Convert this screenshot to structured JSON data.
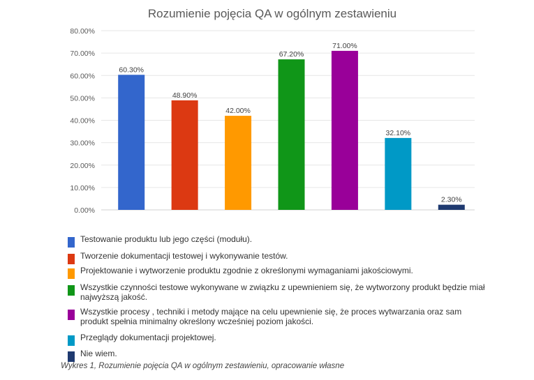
{
  "chart_data": {
    "type": "bar",
    "title": "Rozumienie pojęcia QA w ogólnym zestawieniu",
    "ylim": [
      0,
      80
    ],
    "y_ticks": [
      "0.00%",
      "10.00%",
      "20.00%",
      "30.00%",
      "40.00%",
      "50.00%",
      "60.00%",
      "70.00%",
      "80.00%"
    ],
    "grid": true,
    "legend_position": "bottom",
    "categories": [
      "Testowanie produktu lub jego części (modułu).",
      "Tworzenie dokumentacji testowej i wykonywanie testów.",
      "Projektowanie i wytworzenie produktu zgodnie z określonymi wymaganiami jakościowymi.",
      "Wszystkie czynności testowe wykonywane w związku z upewnieniem się, że wytworzony produkt będzie miał najwyższą jakość.",
      "Wszystkie procesy , techniki i metody mające na celu upewnienie się, że proces wytwarzania oraz sam produkt spełnia minimalny określony wcześniej poziom jakości.",
      "Przeglądy dokumentacji projektowej.",
      "Nie wiem."
    ],
    "values": [
      60.3,
      48.9,
      42.0,
      67.2,
      71.0,
      32.1,
      2.3
    ],
    "value_labels": [
      "60.30%",
      "48.90%",
      "42.00%",
      "67.20%",
      "71.00%",
      "32.10%",
      "2.30%"
    ],
    "colors": [
      "#3366CC",
      "#DC3912",
      "#FF9900",
      "#109618",
      "#990099",
      "#0099C6",
      "#1F3A70"
    ]
  },
  "caption": "Wykres 1, Rozumienie pojęcia QA w ogólnym zestawieniu, opracowanie własne"
}
